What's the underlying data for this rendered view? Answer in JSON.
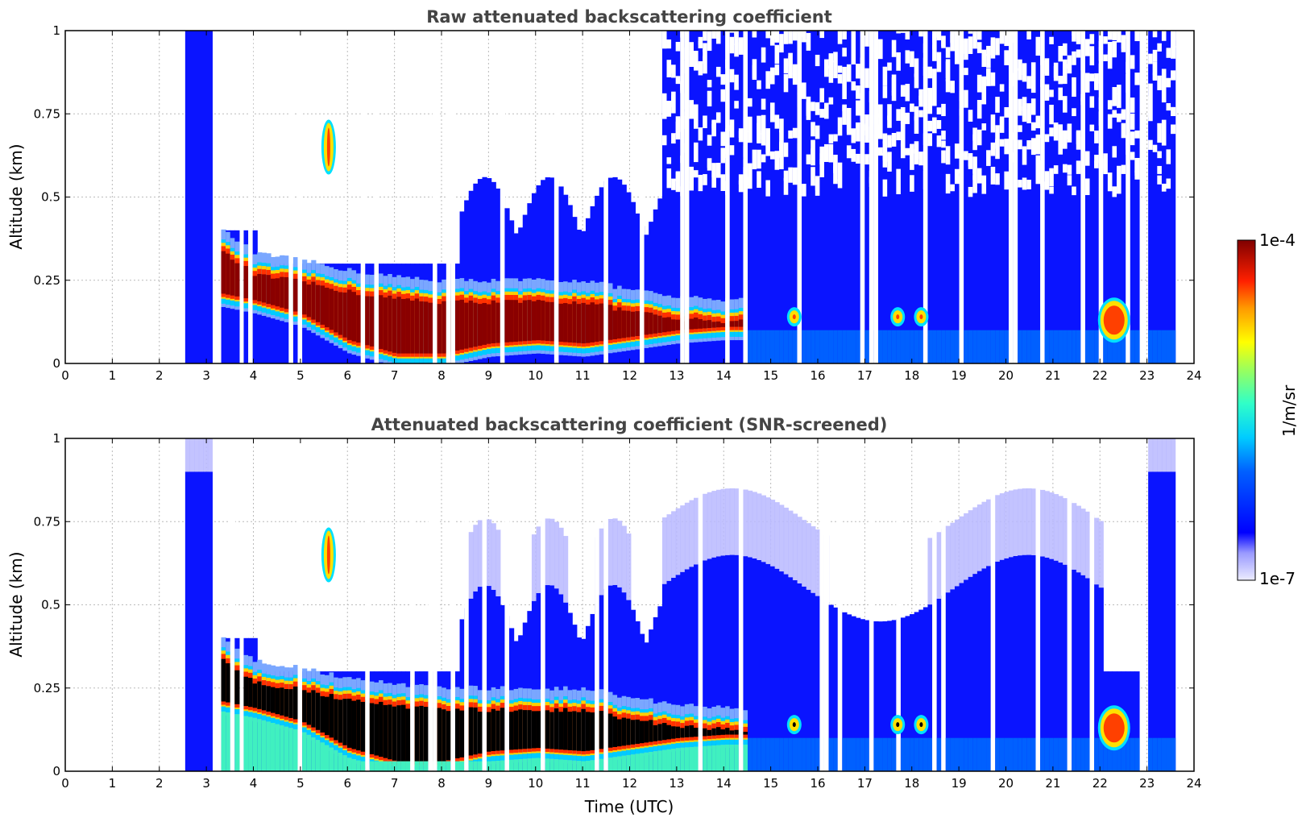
{
  "chart_data": [
    {
      "type": "heatmap",
      "title": "Raw attenuated backscattering coefficient",
      "xlabel": "",
      "ylabel": "Altitude (km)",
      "xlim": [
        0,
        24
      ],
      "ylim": [
        0,
        1
      ],
      "x_ticks": [
        "0",
        "1",
        "2",
        "3",
        "4",
        "5",
        "6",
        "7",
        "8",
        "9",
        "10",
        "11",
        "12",
        "13",
        "14",
        "15",
        "16",
        "17",
        "18",
        "19",
        "20",
        "21",
        "22",
        "23",
        "24"
      ],
      "y_ticks": [
        "0",
        "0.25",
        "0.5",
        "0.75",
        "1"
      ],
      "grid": true,
      "data_start_hour": 2.55,
      "data_end_hour": 23.6,
      "layer_top_km": [
        [
          3.3,
          0.35
        ],
        [
          4,
          0.28
        ],
        [
          5,
          0.26
        ],
        [
          6,
          0.23
        ],
        [
          7,
          0.21
        ],
        [
          8,
          0.2
        ],
        [
          9,
          0.2
        ],
        [
          10,
          0.2
        ],
        [
          11,
          0.2
        ],
        [
          12,
          0.17
        ],
        [
          13,
          0.15
        ],
        [
          14,
          0.14
        ]
      ],
      "layer_bottom_km": [
        [
          3.3,
          0.2
        ],
        [
          4,
          0.18
        ],
        [
          5,
          0.14
        ],
        [
          6,
          0.06
        ],
        [
          7,
          0.02
        ],
        [
          8,
          0.02
        ],
        [
          9,
          0.05
        ],
        [
          10,
          0.06
        ],
        [
          11,
          0.05
        ],
        [
          12,
          0.07
        ],
        [
          13,
          0.09
        ],
        [
          14,
          0.1
        ]
      ],
      "isolated_features": [
        {
          "time_h": 5.6,
          "alt_km": 0.65,
          "note": "elevated plume"
        },
        {
          "time_h": 15.5,
          "alt_km": 0.14
        },
        {
          "time_h": 17.7,
          "alt_km": 0.14
        },
        {
          "time_h": 18.2,
          "alt_km": 0.14
        },
        {
          "time_h": 22.3,
          "alt_km": 0.13
        }
      ]
    },
    {
      "type": "heatmap",
      "title": "Attenuated backscattering coefficient (SNR-screened)",
      "xlabel": "Time (UTC)",
      "ylabel": "Altitude (km)",
      "xlim": [
        0,
        24
      ],
      "ylim": [
        0,
        1
      ],
      "x_ticks": [
        "0",
        "1",
        "2",
        "3",
        "4",
        "5",
        "6",
        "7",
        "8",
        "9",
        "10",
        "11",
        "12",
        "13",
        "14",
        "15",
        "16",
        "17",
        "18",
        "19",
        "20",
        "21",
        "22",
        "23",
        "24"
      ],
      "y_ticks": [
        "0",
        "0.25",
        "0.5",
        "0.75",
        "1"
      ],
      "grid": true,
      "saturated_color": "#000000"
    }
  ],
  "colorbar": {
    "max_label": "1e-4",
    "min_label": "1e-7",
    "units": "1/m/sr",
    "scale": "log",
    "colormap": "jet"
  }
}
